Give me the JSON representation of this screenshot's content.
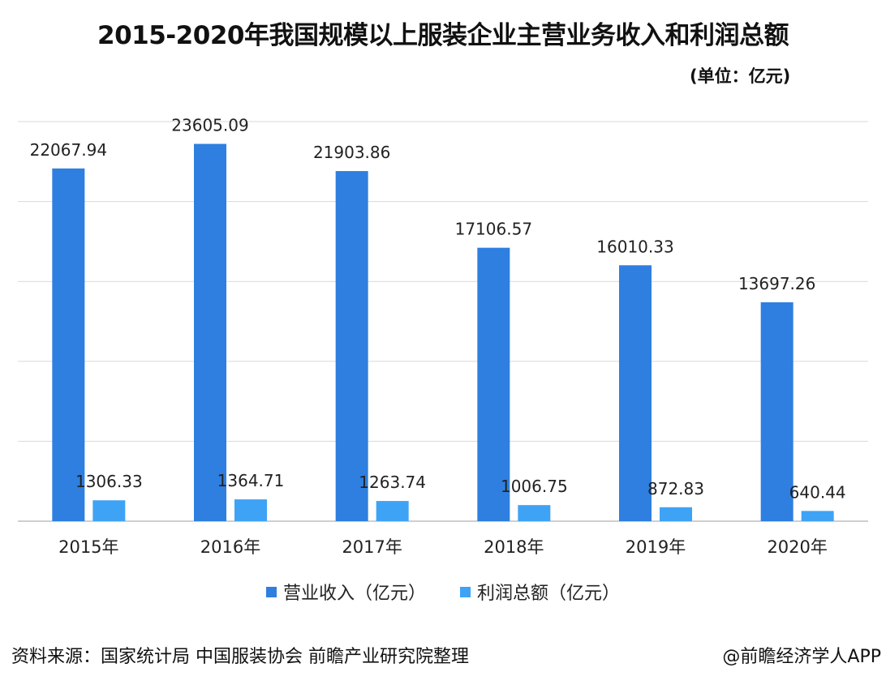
{
  "header": {
    "title": "2015-2020年我国规模以上服装企业主营业务收入和利润总额",
    "unit": "(单位：亿元)"
  },
  "legend": {
    "revenue_label": "营业收入（亿元）",
    "profit_label": "利润总额（亿元）"
  },
  "footer": {
    "source": "资料来源：国家统计局 中国服装协会 前瞻产业研究院整理",
    "credit": "@前瞻经济学人APP"
  },
  "colors": {
    "revenue": "#2e7fe0",
    "profit": "#3fa3f5",
    "grid": "#d9d9d9",
    "axis": "#bfbfbf"
  },
  "chart_data": {
    "type": "bar",
    "categories": [
      "2015年",
      "2016年",
      "2017年",
      "2018年",
      "2019年",
      "2020年"
    ],
    "series": [
      {
        "name": "营业收入（亿元）",
        "values": [
          22067.94,
          23605.09,
          21903.86,
          17106.57,
          16010.33,
          13697.26
        ],
        "labels": [
          "22067.94",
          "23605.09",
          "21903.86",
          "17106.57",
          "16010.33",
          "13697.26"
        ]
      },
      {
        "name": "利润总额（亿元）",
        "values": [
          1306.33,
          1364.71,
          1263.74,
          1006.75,
          872.83,
          640.44
        ],
        "labels": [
          "1306.33",
          "1364.71",
          "1263.74",
          "1006.75",
          "872.83",
          "640.44"
        ]
      }
    ],
    "ylim": [
      0,
      25000
    ],
    "grid": true,
    "legend_position": "bottom"
  }
}
